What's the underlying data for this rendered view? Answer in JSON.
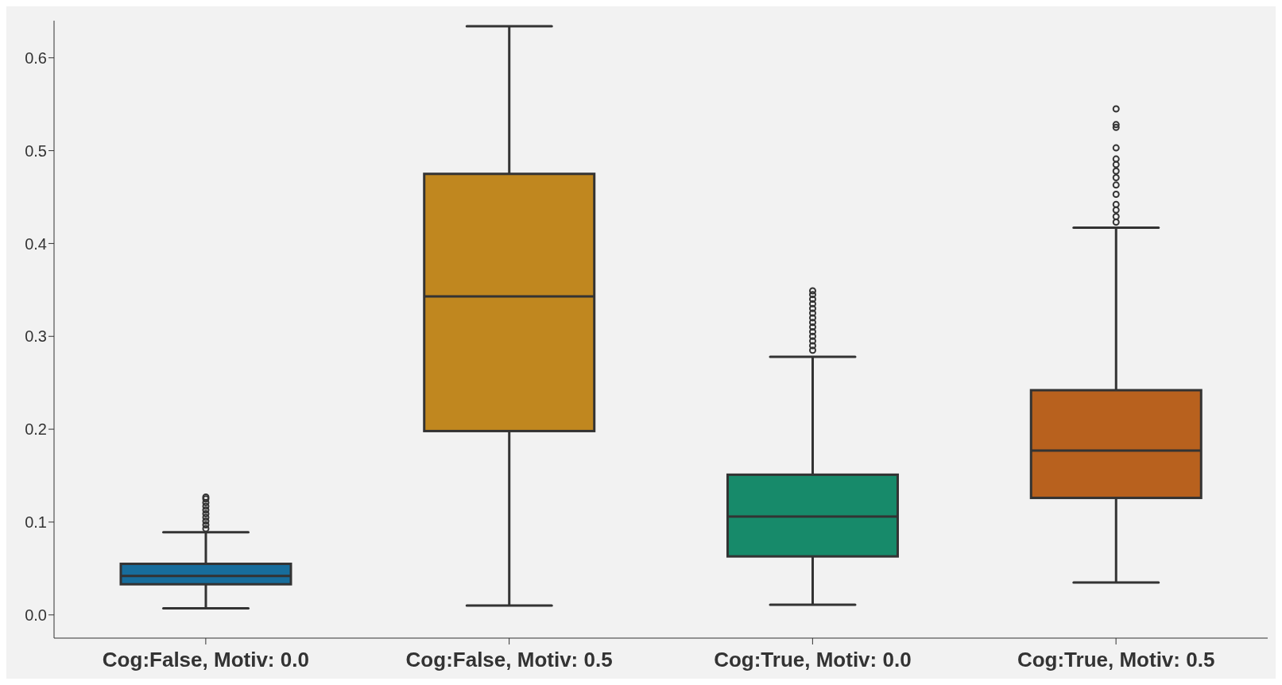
{
  "chart_data": {
    "type": "box",
    "categories": [
      "Cog:False, Motiv: 0.0",
      "Cog:False, Motiv: 0.5",
      "Cog:True, Motiv: 0.0",
      "Cog:True, Motiv: 0.5"
    ],
    "colors": [
      "#176d9c",
      "#c0871f",
      "#178a6a",
      "#b8611e"
    ],
    "boxes": [
      {
        "low": 0.007,
        "q1": 0.033,
        "median": 0.042,
        "q3": 0.055,
        "high": 0.089,
        "outliers": [
          0.093,
          0.097,
          0.101,
          0.105,
          0.109,
          0.113,
          0.117,
          0.121,
          0.125,
          0.127
        ]
      },
      {
        "low": 0.01,
        "q1": 0.198,
        "median": 0.343,
        "q3": 0.475,
        "high": 0.634
      },
      {
        "low": 0.011,
        "q1": 0.063,
        "median": 0.106,
        "q3": 0.151,
        "high": 0.278,
        "outliers": [
          0.285,
          0.29,
          0.295,
          0.3,
          0.305,
          0.31,
          0.315,
          0.32,
          0.325,
          0.33,
          0.335,
          0.34,
          0.345,
          0.349
        ]
      },
      {
        "low": 0.035,
        "q1": 0.126,
        "median": 0.177,
        "q3": 0.242,
        "high": 0.417,
        "outliers": [
          0.423,
          0.429,
          0.436,
          0.442,
          0.453,
          0.463,
          0.471,
          0.478,
          0.485,
          0.491,
          0.503,
          0.525,
          0.528,
          0.545
        ]
      }
    ],
    "ylim": [
      -0.025,
      0.64
    ],
    "yticks": [
      {
        "value": 0,
        "label": "0.0"
      },
      {
        "value": 0.1,
        "label": "0.1"
      },
      {
        "value": 0.2,
        "label": "0.2"
      },
      {
        "value": 0.3,
        "label": "0.3"
      },
      {
        "value": 0.4,
        "label": "0.4"
      },
      {
        "value": 0.5,
        "label": "0.5"
      },
      {
        "value": 0.6,
        "label": "0.6"
      }
    ],
    "grid": false,
    "legend": false
  }
}
